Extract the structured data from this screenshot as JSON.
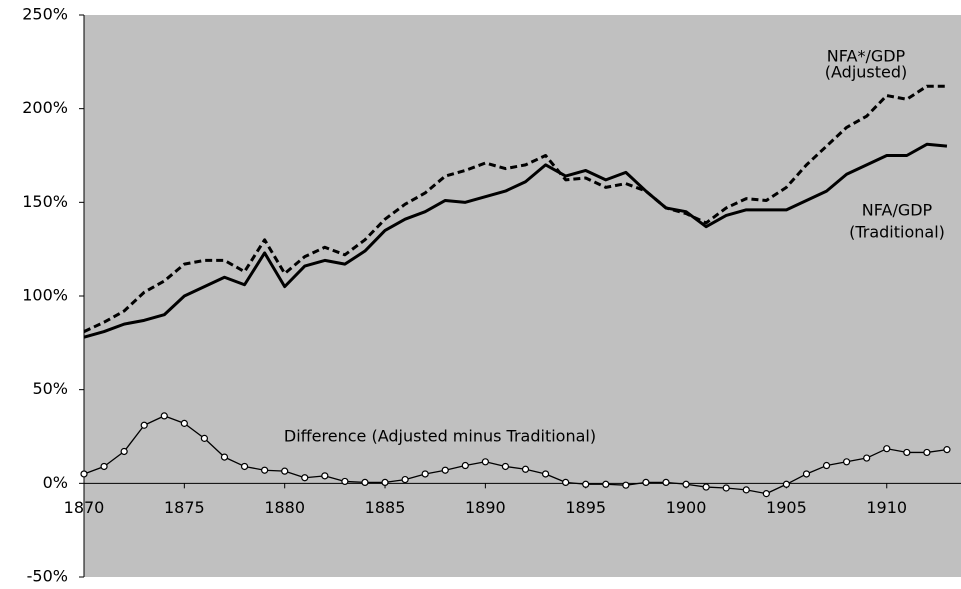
{
  "chart_data": {
    "type": "line",
    "x": [
      1870,
      1871,
      1872,
      1873,
      1874,
      1875,
      1876,
      1877,
      1878,
      1879,
      1880,
      1881,
      1882,
      1883,
      1884,
      1885,
      1886,
      1887,
      1888,
      1889,
      1890,
      1891,
      1892,
      1893,
      1894,
      1895,
      1896,
      1897,
      1898,
      1899,
      1900,
      1901,
      1902,
      1903,
      1904,
      1905,
      1906,
      1907,
      1908,
      1909,
      1910,
      1911,
      1912,
      1913
    ],
    "series": [
      {
        "color": "#000000",
        "style": "dashed",
        "values": [
          81,
          86,
          92,
          102,
          108,
          117,
          119,
          119,
          113,
          130,
          112,
          121,
          126,
          122,
          130,
          141,
          149,
          155,
          164,
          167,
          171,
          168,
          170,
          175,
          162,
          163,
          158,
          160,
          156,
          147,
          144,
          139,
          147,
          152,
          151,
          158,
          170,
          180,
          190,
          196,
          207,
          205,
          212,
          212
        ]
      },
      {
        "color": "#000000",
        "style": "solid",
        "values": [
          78,
          81,
          85,
          87,
          90,
          100,
          105,
          110,
          106,
          123,
          105,
          116,
          119,
          117,
          124,
          135,
          141,
          145,
          151,
          150,
          153,
          156,
          161,
          170,
          164,
          167,
          162,
          166,
          156,
          147,
          145,
          137,
          143,
          146,
          146,
          146,
          151,
          156,
          165,
          170,
          175,
          175,
          181,
          180
        ]
      },
      {
        "color": "#000000",
        "style": "markers",
        "values": [
          5,
          9,
          17,
          31,
          36,
          32,
          24,
          14,
          9,
          7,
          6.5,
          3,
          4,
          1,
          0.5,
          0.5,
          2,
          5,
          7,
          9.5,
          11.5,
          9,
          7.5,
          5,
          0.5,
          -0.5,
          -0.5,
          -1,
          0.5,
          0.5,
          -0.5,
          -2,
          -2.5,
          -3.5,
          -5.5,
          -0.5,
          5,
          9.5,
          11.5,
          13.5,
          18.5,
          16.5,
          16.5,
          18
        ]
      }
    ],
    "annotations": [
      "NFA*/GDP",
      "(Adjusted)",
      "NFA/GDP",
      "(Traditional)",
      "Difference (Adjusted minus Traditional)"
    ],
    "xlim": [
      1870,
      1913.7
    ],
    "xticks": [
      1870,
      1875,
      1880,
      1885,
      1890,
      1895,
      1900,
      1905,
      1910
    ],
    "ylim": [
      -50,
      250
    ],
    "yticks": [
      {
        "value": -50,
        "label": "-50%"
      },
      {
        "value": 0,
        "label": "0%"
      },
      {
        "value": 50,
        "label": "50%"
      },
      {
        "value": 100,
        "label": "100%"
      },
      {
        "value": 150,
        "label": "150%"
      },
      {
        "value": 200,
        "label": "200%"
      },
      {
        "value": 250,
        "label": "250%"
      }
    ],
    "plot_background": "#c0c0c0",
    "grid": false
  }
}
